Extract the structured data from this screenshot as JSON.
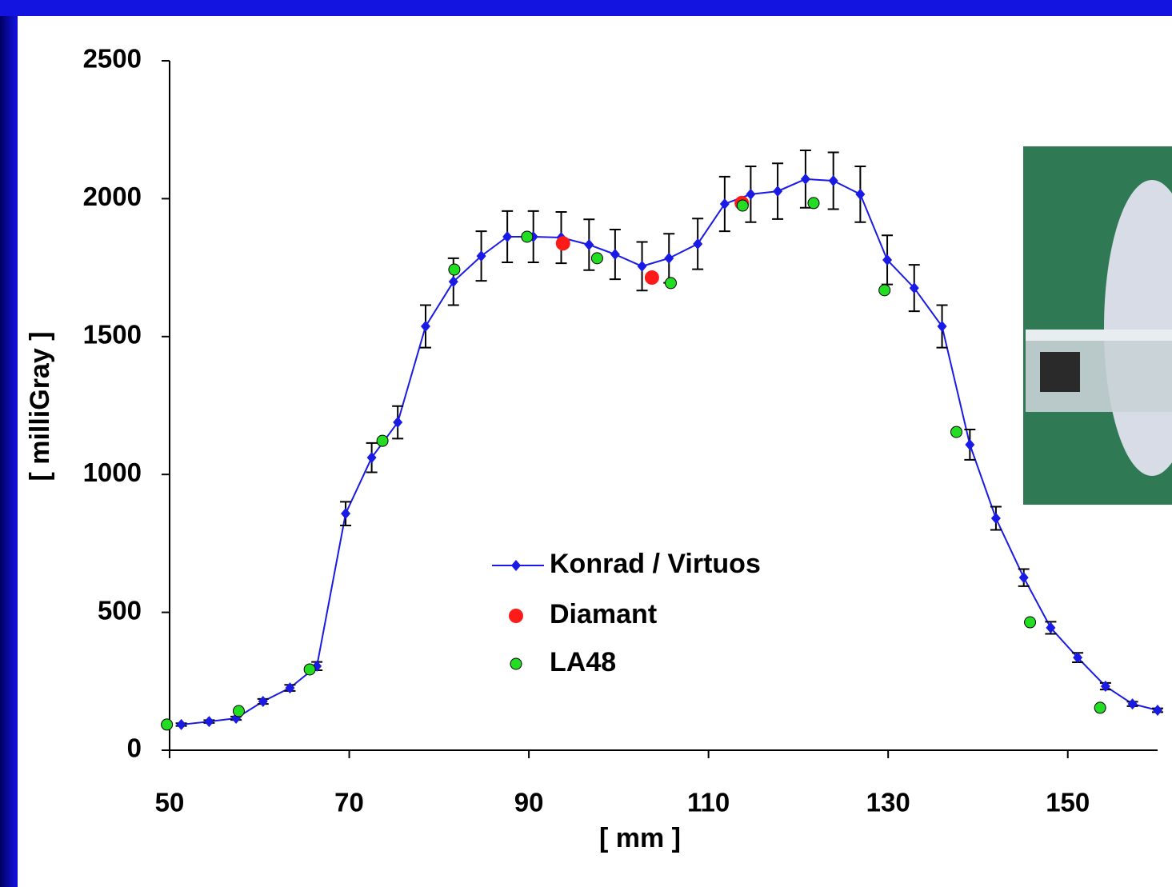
{
  "chart_data": {
    "type": "line",
    "xlabel": "[ mm ]",
    "ylabel": "[ milliGray ]",
    "xlim": [
      50,
      160
    ],
    "ylim": [
      0,
      2500
    ],
    "xticks": [
      50,
      70,
      90,
      110,
      130,
      150
    ],
    "yticks": [
      0,
      500,
      1000,
      1500,
      2000,
      2500
    ],
    "series": [
      {
        "name": "Konrad / Virtuos",
        "color": "#1a1ae6",
        "marker": "diamond",
        "x": [
          51.3,
          54.4,
          57.4,
          60.4,
          63.4,
          66.4,
          69.6,
          72.5,
          75.4,
          78.5,
          81.6,
          84.7,
          87.6,
          90.5,
          93.6,
          96.7,
          99.6,
          102.6,
          105.6,
          108.8,
          111.8,
          114.7,
          117.7,
          120.8,
          123.9,
          126.9,
          129.9,
          132.9,
          136.0,
          139.1,
          142.0,
          145.1,
          148.1,
          151.1,
          154.2,
          157.2,
          160
        ],
        "values": [
          93,
          104,
          116,
          177,
          226,
          305,
          858,
          1061,
          1189,
          1537,
          1699,
          1792,
          1862,
          1862,
          1859,
          1833,
          1798,
          1755,
          1784,
          1836,
          1981,
          2016,
          2027,
          2071,
          2065,
          2016,
          1778,
          1676,
          1537,
          1108,
          841,
          626,
          444,
          336,
          232,
          168,
          145
        ],
        "errors": [
          5,
          5,
          6,
          9,
          11,
          15,
          43,
          53,
          59,
          77,
          85,
          90,
          93,
          93,
          93,
          92,
          90,
          88,
          89,
          92,
          99,
          101,
          101,
          104,
          103,
          101,
          89,
          84,
          77,
          55,
          42,
          31,
          22,
          17,
          12,
          8,
          7
        ]
      },
      {
        "name": "Diamant",
        "color": "#ff1a1a",
        "marker": "big-dot",
        "x": [
          93.8,
          103.7,
          113.7
        ],
        "values": [
          1838,
          1714,
          1984
        ]
      },
      {
        "name": "LA48",
        "color": "#22dd22",
        "marker": "dot",
        "x": [
          49.7,
          57.7,
          65.6,
          73.7,
          81.7,
          89.8,
          97.6,
          105.8,
          113.8,
          121.7,
          129.6,
          137.6,
          145.8,
          153.6
        ],
        "values": [
          93,
          142,
          293,
          1122,
          1743,
          1862,
          1784,
          1694,
          1975,
          1984,
          1668,
          1154,
          464,
          154
        ]
      }
    ]
  }
}
